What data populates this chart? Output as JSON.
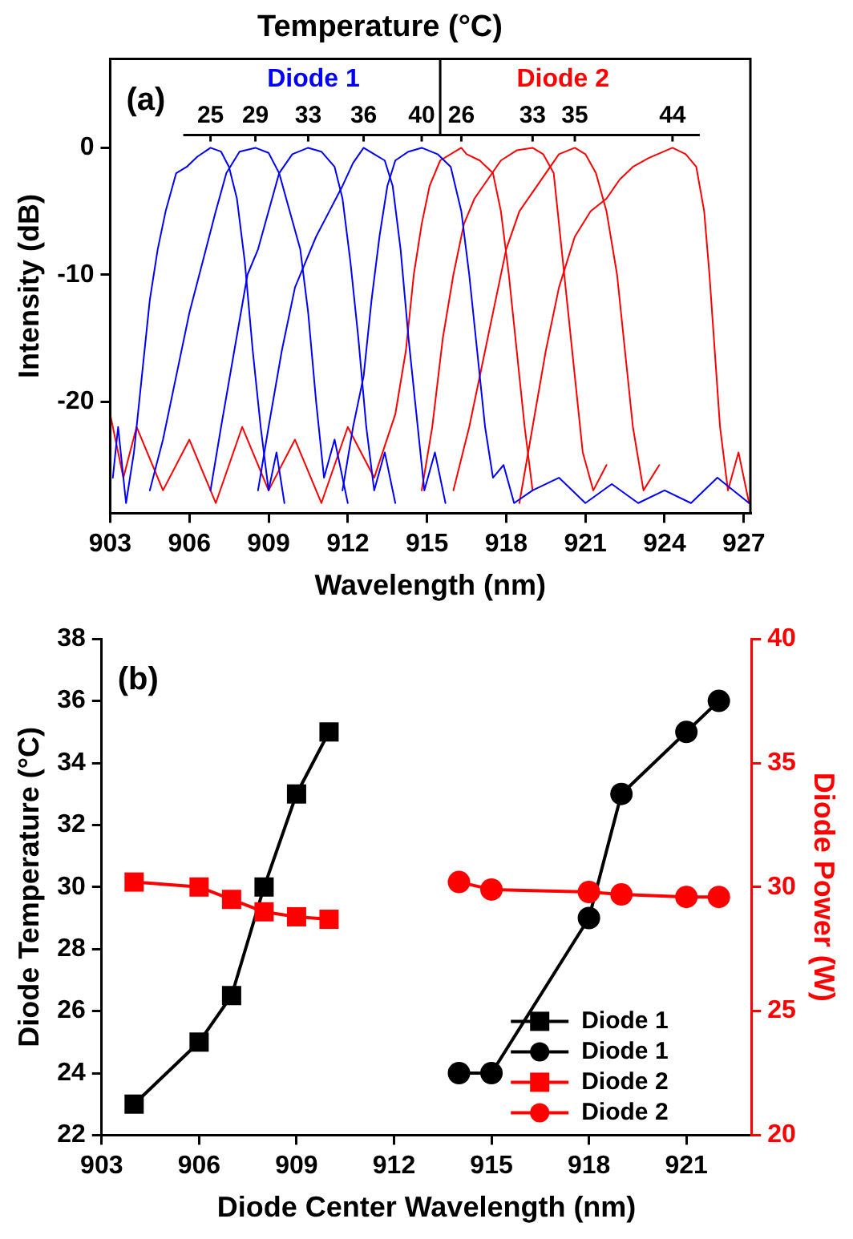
{
  "chart_data": [
    {
      "type": "line",
      "title": "Temperature (°C)",
      "xlabel": "Wavelength (nm)",
      "ylabel": "Intensity (dB)",
      "xlim": [
        903,
        927.25
      ],
      "xticks": [
        903,
        906,
        909,
        912,
        915,
        918,
        921,
        924,
        927
      ],
      "ylim": [
        -28.8,
        7
      ],
      "yticks": [
        -20,
        -10,
        0
      ],
      "grid": false,
      "legend": false,
      "annotations": [
        "(a)",
        {
          "text": "25",
          "x": 906.8,
          "y": 0
        },
        {
          "text": "29",
          "x": 908.5,
          "y": 0
        },
        {
          "text": "33",
          "x": 910.5,
          "y": 0
        },
        {
          "text": "36",
          "x": 912.6,
          "y": 0
        },
        {
          "text": "40",
          "x": 914.8,
          "y": 0
        },
        {
          "text": "26",
          "x": 916.3,
          "y": 0
        },
        {
          "text": "33",
          "x": 919.0,
          "y": 0
        },
        {
          "text": "35",
          "x": 920.6,
          "y": 0
        },
        {
          "text": "44",
          "x": 924.3,
          "y": 0
        }
      ],
      "ref_lines": [
        {
          "axis": "x",
          "value": 915.5,
          "color": "#000000"
        },
        {
          "axis": "y",
          "value": 1,
          "color": "#000000"
        }
      ],
      "series": [
        {
          "name": "Diode 1",
          "color": "#0000ff",
          "x": [
            903.1,
            903.3,
            903.6,
            903.9,
            904.2,
            904.5,
            904.8,
            905.1,
            905.5,
            905.9,
            906.3,
            906.8,
            907.2,
            907.5,
            907.8,
            908.1,
            908.4,
            908.7,
            909.0,
            909.3,
            909.6,
            null,
            904.5,
            905.0,
            905.5,
            906.0,
            906.5,
            907.0,
            907.4,
            907.9,
            908.5,
            909.0,
            909.4,
            909.8,
            910.2,
            910.5,
            910.8,
            911.1,
            911.5,
            912.0,
            null,
            906.8,
            907.2,
            907.7,
            908.2,
            908.6,
            909.0,
            909.4,
            909.9,
            910.5,
            911.0,
            911.5,
            911.8,
            912.1,
            912.4,
            912.7,
            913.0,
            913.4,
            913.8,
            null,
            908.6,
            909.0,
            909.5,
            910.0,
            910.4,
            910.8,
            911.3,
            911.8,
            912.2,
            912.6,
            913.0,
            913.4,
            913.7,
            914.0,
            914.3,
            914.6,
            914.9,
            915.3,
            915.7,
            null,
            911.8,
            912.2,
            912.6,
            912.9,
            913.2,
            913.5,
            913.8,
            914.3,
            914.8,
            915.4,
            915.9,
            916.3,
            916.6,
            916.9,
            917.2,
            917.5,
            917.9,
            918.3,
            919.0,
            920.0,
            921.0,
            922.0,
            923.0,
            924.0,
            925.0,
            926.0,
            927.2
          ],
          "values": [
            -26,
            -22,
            -28,
            -24,
            -18,
            -12,
            -8,
            -5,
            -2,
            -1.5,
            -0.7,
            0,
            -0.3,
            -1.5,
            -4,
            -9,
            -16,
            -22,
            -27,
            -24,
            -28,
            null,
            -27,
            -23,
            -18,
            -13,
            -9,
            -5,
            -2,
            -0.3,
            0,
            -0.4,
            -2,
            -5,
            -8,
            -13,
            -20,
            -26,
            -23,
            -28,
            null,
            -27,
            -22,
            -16,
            -10,
            -8,
            -5,
            -2,
            -0.5,
            0,
            -0.3,
            -1.5,
            -4,
            -9,
            -15,
            -22,
            -27,
            -24,
            -28,
            null,
            -27,
            -22,
            -16,
            -11,
            -9,
            -7,
            -5,
            -3,
            -1.2,
            0,
            -0.5,
            -1,
            -3,
            -8,
            -15,
            -21,
            -27,
            -24,
            -28,
            null,
            -27,
            -22,
            -18,
            -12,
            -7,
            -3,
            -1,
            -0.3,
            0,
            -0.5,
            -1.5,
            -5,
            -10,
            -16,
            -22,
            -26,
            -25,
            -28,
            -27,
            -26,
            -28,
            -26.5,
            -28,
            -27,
            -28,
            -26,
            -28
          ]
        },
        {
          "name": "Diode 2",
          "color": "#ff0000",
          "x": [
            903.0,
            903.5,
            904.0,
            905.0,
            906.0,
            907.0,
            908.0,
            909.0,
            910.0,
            911.0,
            912.0,
            913.0,
            913.8,
            914.2,
            914.5,
            914.8,
            915.1,
            915.5,
            916.3,
            916.5,
            917.0,
            917.5,
            917.8,
            918.1,
            918.4,
            918.7,
            919.0,
            null,
            914.8,
            915.2,
            915.6,
            916.0,
            916.4,
            916.8,
            917.3,
            917.8,
            918.4,
            919.0,
            919.4,
            919.8,
            920.0,
            920.3,
            920.6,
            920.9,
            921.3,
            921.8,
            null,
            916.0,
            916.6,
            917.2,
            917.6,
            918.0,
            918.5,
            919.0,
            919.5,
            920.0,
            920.6,
            921.0,
            921.4,
            921.8,
            922.2,
            922.5,
            922.8,
            923.2,
            923.8,
            null,
            918.5,
            919.0,
            919.5,
            920.0,
            920.6,
            921.2,
            921.8,
            922.3,
            922.8,
            923.4,
            924.3,
            924.8,
            925.2,
            925.5,
            925.7,
            925.9,
            926.1,
            926.4,
            926.8,
            927.2
          ],
          "values": [
            -21,
            -26,
            -22,
            -27,
            -23,
            -28,
            -22,
            -27,
            -23,
            -28,
            -22,
            -26,
            -21,
            -16,
            -10,
            -6,
            -3,
            -1,
            0,
            -0.5,
            -1,
            -2,
            -5,
            -10,
            -16,
            -22,
            -27,
            null,
            -27,
            -22,
            -15,
            -10,
            -6,
            -4,
            -2.5,
            -1,
            -0.2,
            0,
            -0.5,
            -2,
            -6,
            -12,
            -18,
            -24,
            -27,
            -25,
            null,
            -27,
            -22,
            -16,
            -12,
            -8,
            -5,
            -3.5,
            -2,
            -0.5,
            0,
            -0.5,
            -2,
            -5,
            -10,
            -16,
            -22,
            -27,
            -25,
            null,
            -28,
            -22,
            -16,
            -11,
            -7,
            -5,
            -4,
            -2.5,
            -1.5,
            -0.8,
            0,
            -0.5,
            -1.5,
            -5,
            -10,
            -16,
            -22,
            -27,
            -24,
            -28
          ]
        }
      ]
    },
    {
      "type": "line",
      "xlabel": "Diode Center Wavelength (nm)",
      "ylabel": "Diode Temperature (°C)",
      "y2label": "Diode Power (W)",
      "xlim": [
        903,
        923
      ],
      "xticks": [
        903,
        906,
        909,
        912,
        915,
        918,
        921
      ],
      "ylim": [
        22,
        38
      ],
      "yticks": [
        22,
        24,
        26,
        28,
        30,
        32,
        34,
        36,
        38
      ],
      "y2lim": [
        20,
        40
      ],
      "y2ticks": [
        20,
        25,
        30,
        35,
        40
      ],
      "grid": false,
      "legend": "bottom right",
      "annotations": [
        "(b)"
      ],
      "series": [
        {
          "name": "Diode 1",
          "color": "#000000",
          "marker": "square",
          "x": [
            904,
            906,
            907,
            908,
            909,
            910
          ],
          "values": [
            23,
            25,
            26.5,
            30,
            33,
            35
          ]
        },
        {
          "name": "Diode 1",
          "color": "#000000",
          "marker": "circle",
          "x": [
            914,
            915,
            918,
            919,
            921,
            922
          ],
          "values": [
            24,
            24,
            29,
            33,
            35,
            36
          ]
        },
        {
          "name": "Diode 2",
          "color": "#ff0000",
          "marker": "square",
          "axis": "y2",
          "x": [
            904,
            906,
            907,
            908,
            909,
            910
          ],
          "values": [
            30.2,
            30,
            29.5,
            29,
            28.8,
            28.7
          ]
        },
        {
          "name": "Diode 2",
          "color": "#ff0000",
          "marker": "circle",
          "axis": "y2",
          "x": [
            914,
            915,
            918,
            919,
            921,
            922
          ],
          "values": [
            30.2,
            29.9,
            29.8,
            29.7,
            29.6,
            29.6
          ]
        }
      ]
    }
  ]
}
